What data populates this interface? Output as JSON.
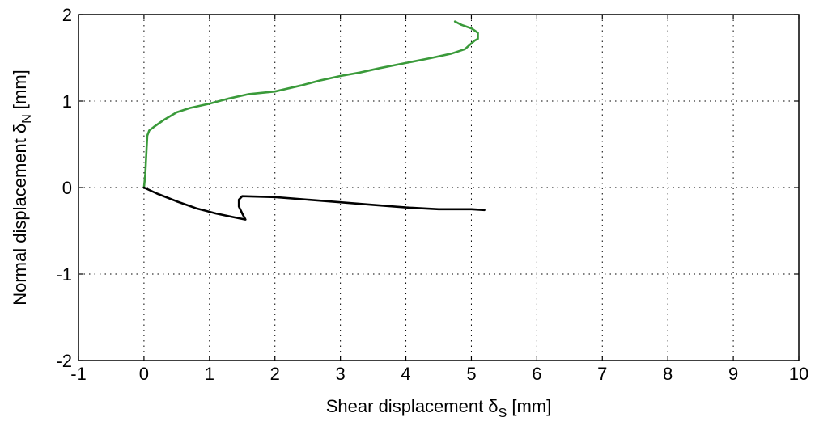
{
  "chart_data": {
    "type": "line",
    "xlabel": "Shear displacement δS [mm]",
    "xlabel_main": "Shear displacement δ",
    "xlabel_sub": "S",
    "xlabel_unit": " [mm]",
    "ylabel": "Normal displacement δN [mm]",
    "ylabel_main": "Normal displacement δ",
    "ylabel_sub": "N",
    "ylabel_unit": " [mm]",
    "xlim": [
      -1,
      10
    ],
    "ylim": [
      -2,
      2
    ],
    "x_ticks": [
      -1,
      0,
      1,
      2,
      3,
      4,
      5,
      6,
      7,
      8,
      9,
      10
    ],
    "x_tick_labels": [
      "-1",
      "0",
      "1",
      "2",
      "3",
      "4",
      "5",
      "6",
      "7",
      "8",
      "9",
      "10"
    ],
    "y_ticks": [
      -2,
      -1,
      0,
      1,
      2
    ],
    "y_tick_labels": [
      "-2",
      "-1",
      "0",
      "1",
      "2"
    ],
    "grid": true,
    "series": [
      {
        "color": "#3a9a3a",
        "points": [
          [
            0.0,
            0.0
          ],
          [
            0.02,
            0.15
          ],
          [
            0.03,
            0.3
          ],
          [
            0.04,
            0.45
          ],
          [
            0.05,
            0.6
          ],
          [
            0.08,
            0.66
          ],
          [
            0.15,
            0.7
          ],
          [
            0.3,
            0.78
          ],
          [
            0.5,
            0.87
          ],
          [
            0.7,
            0.92
          ],
          [
            1.0,
            0.97
          ],
          [
            1.3,
            1.03
          ],
          [
            1.6,
            1.08
          ],
          [
            2.0,
            1.11
          ],
          [
            2.4,
            1.18
          ],
          [
            2.7,
            1.24
          ],
          [
            3.0,
            1.29
          ],
          [
            3.3,
            1.33
          ],
          [
            3.6,
            1.38
          ],
          [
            4.0,
            1.44
          ],
          [
            4.4,
            1.5
          ],
          [
            4.7,
            1.55
          ],
          [
            4.9,
            1.6
          ],
          [
            5.05,
            1.7
          ],
          [
            5.1,
            1.72
          ],
          [
            5.1,
            1.79
          ],
          [
            5.0,
            1.84
          ],
          [
            4.85,
            1.88
          ],
          [
            4.75,
            1.92
          ]
        ]
      },
      {
        "color": "#000000",
        "points": [
          [
            0.0,
            0.0
          ],
          [
            0.2,
            -0.07
          ],
          [
            0.5,
            -0.16
          ],
          [
            0.8,
            -0.24
          ],
          [
            1.1,
            -0.3
          ],
          [
            1.35,
            -0.34
          ],
          [
            1.55,
            -0.37
          ],
          [
            1.5,
            -0.3
          ],
          [
            1.45,
            -0.22
          ],
          [
            1.45,
            -0.14
          ],
          [
            1.5,
            -0.1
          ],
          [
            2.0,
            -0.11
          ],
          [
            2.5,
            -0.14
          ],
          [
            3.0,
            -0.17
          ],
          [
            3.5,
            -0.2
          ],
          [
            4.0,
            -0.23
          ],
          [
            4.5,
            -0.25
          ],
          [
            5.0,
            -0.25
          ],
          [
            5.2,
            -0.26
          ]
        ]
      }
    ]
  }
}
